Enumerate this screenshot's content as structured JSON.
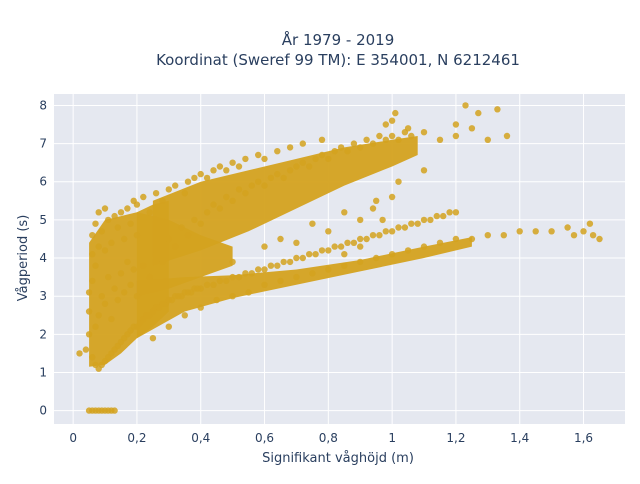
{
  "chart_data": {
    "type": "scatter",
    "title_line1": "År 1979 - 2019",
    "title_line2": "Koordinat (Sweref 99 TM): E 354001, N 6212461",
    "xlabel": "Signifikant våghöjd (m)",
    "ylabel": "Vågperiod (s)",
    "xlim": [
      -0.06,
      1.73
    ],
    "ylim": [
      -0.35,
      8.3
    ],
    "grid": true,
    "marker_color": "#d4a21f",
    "plot_bg": "#e5e8f0",
    "x_ticks": [
      {
        "value": 0,
        "label": "0"
      },
      {
        "value": 0.2,
        "label": "0,2"
      },
      {
        "value": 0.4,
        "label": "0,4"
      },
      {
        "value": 0.6,
        "label": "0,6"
      },
      {
        "value": 0.8,
        "label": "0,8"
      },
      {
        "value": 1.0,
        "label": "1"
      },
      {
        "value": 1.2,
        "label": "1,2"
      },
      {
        "value": 1.4,
        "label": "1,4"
      },
      {
        "value": 1.6,
        "label": "1,6"
      }
    ],
    "y_ticks": [
      {
        "value": 0,
        "label": "0"
      },
      {
        "value": 1,
        "label": "1"
      },
      {
        "value": 2,
        "label": "2"
      },
      {
        "value": 3,
        "label": "3"
      },
      {
        "value": 4,
        "label": "4"
      },
      {
        "value": 5,
        "label": "5"
      },
      {
        "value": 6,
        "label": "6"
      },
      {
        "value": 7,
        "label": "7"
      },
      {
        "value": 8,
        "label": "8"
      }
    ],
    "series": [
      {
        "points": [
          [
            0.05,
            0
          ],
          [
            0.06,
            0
          ],
          [
            0.07,
            0
          ],
          [
            0.08,
            0
          ],
          [
            0.09,
            0
          ],
          [
            0.1,
            0
          ],
          [
            0.11,
            0
          ],
          [
            0.12,
            0
          ],
          [
            0.13,
            0
          ],
          [
            0.02,
            1.5
          ],
          [
            0.04,
            1.6
          ],
          [
            0.05,
            2.0
          ],
          [
            0.05,
            2.6
          ],
          [
            0.05,
            3.1
          ],
          [
            0.06,
            1.4
          ],
          [
            0.06,
            3.4
          ],
          [
            0.06,
            4.1
          ],
          [
            0.06,
            4.6
          ],
          [
            0.07,
            1.2
          ],
          [
            0.07,
            2.2
          ],
          [
            0.07,
            3.8
          ],
          [
            0.07,
            4.9
          ],
          [
            0.08,
            1.1
          ],
          [
            0.08,
            2.5
          ],
          [
            0.08,
            4.3
          ],
          [
            0.08,
            5.2
          ],
          [
            0.09,
            1.2
          ],
          [
            0.09,
            3.0
          ],
          [
            0.09,
            4.7
          ],
          [
            0.1,
            1.3
          ],
          [
            0.1,
            2.8
          ],
          [
            0.1,
            4.2
          ],
          [
            0.1,
            5.3
          ],
          [
            0.11,
            1.4
          ],
          [
            0.11,
            3.5
          ],
          [
            0.11,
            5.0
          ],
          [
            0.12,
            1.5
          ],
          [
            0.12,
            2.4
          ],
          [
            0.12,
            4.4
          ],
          [
            0.13,
            1.6
          ],
          [
            0.13,
            3.2
          ],
          [
            0.13,
            5.1
          ],
          [
            0.14,
            1.7
          ],
          [
            0.14,
            2.9
          ],
          [
            0.14,
            4.8
          ],
          [
            0.15,
            1.8
          ],
          [
            0.15,
            3.6
          ],
          [
            0.15,
            5.2
          ],
          [
            0.16,
            1.9
          ],
          [
            0.16,
            3.1
          ],
          [
            0.16,
            4.5
          ],
          [
            0.17,
            2.0
          ],
          [
            0.17,
            3.9
          ],
          [
            0.17,
            5.3
          ],
          [
            0.18,
            2.1
          ],
          [
            0.18,
            3.3
          ],
          [
            0.18,
            4.9
          ],
          [
            0.19,
            2.2
          ],
          [
            0.19,
            3.7
          ],
          [
            0.19,
            5.5
          ],
          [
            0.2,
            2.2
          ],
          [
            0.2,
            3.0
          ],
          [
            0.2,
            4.6
          ],
          [
            0.2,
            5.4
          ],
          [
            0.21,
            2.3
          ],
          [
            0.22,
            2.4
          ],
          [
            0.22,
            3.8
          ],
          [
            0.22,
            5.6
          ],
          [
            0.23,
            2.5
          ],
          [
            0.24,
            2.5
          ],
          [
            0.24,
            3.5
          ],
          [
            0.24,
            5.2
          ],
          [
            0.25,
            2.6
          ],
          [
            0.26,
            2.7
          ],
          [
            0.26,
            4.1
          ],
          [
            0.26,
            5.7
          ],
          [
            0.27,
            2.7
          ],
          [
            0.28,
            2.8
          ],
          [
            0.28,
            3.9
          ],
          [
            0.28,
            5.5
          ],
          [
            0.29,
            2.8
          ],
          [
            0.3,
            2.9
          ],
          [
            0.3,
            4.5
          ],
          [
            0.3,
            5.8
          ],
          [
            0.31,
            2.9
          ],
          [
            0.32,
            3.0
          ],
          [
            0.32,
            4.3
          ],
          [
            0.32,
            5.9
          ],
          [
            0.33,
            3.0
          ],
          [
            0.34,
            3.0
          ],
          [
            0.34,
            4.8
          ],
          [
            0.35,
            3.1
          ],
          [
            0.35,
            5.7
          ],
          [
            0.36,
            3.1
          ],
          [
            0.36,
            4.6
          ],
          [
            0.36,
            6.0
          ],
          [
            0.37,
            3.1
          ],
          [
            0.38,
            3.2
          ],
          [
            0.38,
            5.0
          ],
          [
            0.38,
            6.1
          ],
          [
            0.39,
            3.2
          ],
          [
            0.4,
            3.2
          ],
          [
            0.4,
            4.9
          ],
          [
            0.4,
            6.2
          ],
          [
            0.42,
            3.3
          ],
          [
            0.42,
            5.2
          ],
          [
            0.42,
            6.1
          ],
          [
            0.44,
            3.3
          ],
          [
            0.44,
            5.4
          ],
          [
            0.44,
            6.3
          ],
          [
            0.46,
            3.4
          ],
          [
            0.46,
            5.3
          ],
          [
            0.46,
            6.4
          ],
          [
            0.48,
            3.4
          ],
          [
            0.48,
            5.6
          ],
          [
            0.48,
            6.3
          ],
          [
            0.5,
            3.5
          ],
          [
            0.5,
            5.5
          ],
          [
            0.5,
            6.5
          ],
          [
            0.52,
            3.5
          ],
          [
            0.52,
            5.8
          ],
          [
            0.52,
            6.4
          ],
          [
            0.54,
            3.6
          ],
          [
            0.54,
            5.7
          ],
          [
            0.54,
            6.6
          ],
          [
            0.56,
            3.6
          ],
          [
            0.56,
            5.9
          ],
          [
            0.58,
            3.7
          ],
          [
            0.58,
            6.0
          ],
          [
            0.58,
            6.7
          ],
          [
            0.6,
            3.7
          ],
          [
            0.6,
            5.9
          ],
          [
            0.6,
            6.6
          ],
          [
            0.62,
            3.8
          ],
          [
            0.62,
            6.1
          ],
          [
            0.64,
            3.8
          ],
          [
            0.64,
            6.2
          ],
          [
            0.64,
            6.8
          ],
          [
            0.66,
            3.9
          ],
          [
            0.66,
            6.1
          ],
          [
            0.68,
            3.9
          ],
          [
            0.68,
            6.3
          ],
          [
            0.68,
            6.9
          ],
          [
            0.7,
            4.0
          ],
          [
            0.7,
            6.4
          ],
          [
            0.72,
            4.0
          ],
          [
            0.72,
            6.5
          ],
          [
            0.72,
            7.0
          ],
          [
            0.74,
            4.1
          ],
          [
            0.74,
            6.4
          ],
          [
            0.76,
            4.1
          ],
          [
            0.76,
            6.6
          ],
          [
            0.78,
            4.2
          ],
          [
            0.78,
            6.7
          ],
          [
            0.78,
            7.1
          ],
          [
            0.8,
            4.2
          ],
          [
            0.8,
            6.6
          ],
          [
            0.82,
            4.3
          ],
          [
            0.82,
            6.8
          ],
          [
            0.84,
            4.3
          ],
          [
            0.84,
            6.9
          ],
          [
            0.86,
            4.4
          ],
          [
            0.86,
            6.8
          ],
          [
            0.88,
            4.4
          ],
          [
            0.88,
            7.0
          ],
          [
            0.9,
            4.5
          ],
          [
            0.9,
            6.9
          ],
          [
            0.92,
            4.5
          ],
          [
            0.92,
            7.1
          ],
          [
            0.94,
            4.6
          ],
          [
            0.94,
            7.0
          ],
          [
            0.96,
            4.6
          ],
          [
            0.96,
            7.2
          ],
          [
            0.98,
            4.7
          ],
          [
            0.98,
            7.1
          ],
          [
            1.0,
            4.7
          ],
          [
            1.0,
            7.2
          ],
          [
            1.02,
            4.8
          ],
          [
            1.02,
            7.1
          ],
          [
            1.04,
            4.8
          ],
          [
            1.04,
            7.3
          ],
          [
            1.06,
            4.9
          ],
          [
            1.06,
            7.2
          ],
          [
            1.08,
            4.9
          ],
          [
            1.1,
            5.0
          ],
          [
            1.12,
            5.0
          ],
          [
            1.14,
            5.1
          ],
          [
            1.16,
            5.1
          ],
          [
            1.18,
            5.2
          ],
          [
            1.2,
            5.2
          ],
          [
            0.25,
            1.9
          ],
          [
            0.3,
            2.2
          ],
          [
            0.35,
            2.5
          ],
          [
            0.4,
            2.7
          ],
          [
            0.45,
            2.9
          ],
          [
            0.5,
            3.0
          ],
          [
            0.55,
            3.1
          ],
          [
            0.6,
            3.3
          ],
          [
            0.65,
            3.4
          ],
          [
            0.7,
            3.5
          ],
          [
            0.75,
            3.6
          ],
          [
            0.8,
            3.7
          ],
          [
            0.85,
            3.8
          ],
          [
            0.9,
            3.9
          ],
          [
            0.95,
            4.0
          ],
          [
            1.0,
            4.1
          ],
          [
            1.05,
            4.2
          ],
          [
            1.1,
            4.3
          ],
          [
            1.15,
            4.4
          ],
          [
            1.2,
            4.5
          ],
          [
            1.25,
            4.5
          ],
          [
            1.3,
            4.6
          ],
          [
            1.35,
            4.6
          ],
          [
            1.4,
            4.7
          ],
          [
            1.45,
            4.7
          ],
          [
            1.5,
            4.7
          ],
          [
            1.55,
            4.8
          ],
          [
            1.57,
            4.6
          ],
          [
            1.6,
            4.7
          ],
          [
            1.62,
            4.9
          ],
          [
            1.63,
            4.6
          ],
          [
            1.65,
            4.5
          ],
          [
            0.5,
            3.9
          ],
          [
            0.6,
            4.3
          ],
          [
            0.65,
            4.5
          ],
          [
            0.75,
            4.9
          ],
          [
            0.85,
            5.2
          ],
          [
            0.95,
            5.5
          ],
          [
            1.02,
            6.0
          ],
          [
            1.1,
            6.3
          ],
          [
            1.0,
            5.6
          ],
          [
            0.9,
            5.0
          ],
          [
            0.8,
            4.7
          ],
          [
            0.7,
            4.4
          ],
          [
            0.98,
            7.5
          ],
          [
            1.05,
            7.4
          ],
          [
            1.1,
            7.3
          ],
          [
            1.15,
            7.1
          ],
          [
            1.2,
            7.2
          ],
          [
            1.2,
            7.5
          ],
          [
            1.23,
            8.0
          ],
          [
            1.25,
            7.4
          ],
          [
            1.27,
            7.8
          ],
          [
            1.3,
            7.1
          ],
          [
            1.33,
            7.9
          ],
          [
            1.36,
            7.2
          ],
          [
            1.01,
            7.8
          ],
          [
            1.0,
            7.6
          ],
          [
            0.97,
            5.0
          ],
          [
            0.94,
            5.3
          ],
          [
            0.9,
            4.3
          ],
          [
            0.85,
            4.1
          ]
        ]
      }
    ]
  }
}
